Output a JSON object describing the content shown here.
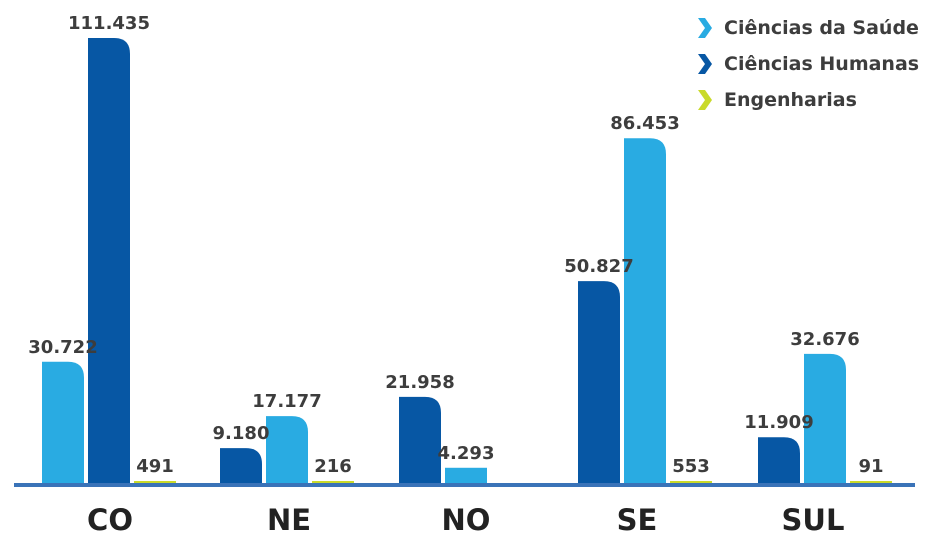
{
  "chart_data": {
    "type": "bar",
    "title": "",
    "xlabel": "",
    "ylabel": "",
    "ylim": [
      0,
      111435
    ],
    "grid": false,
    "legend_position": "top-right",
    "categories": [
      "CO",
      "NE",
      "NO",
      "SE",
      "SUL"
    ],
    "series": [
      {
        "name": "Ciências da Saúde",
        "color": "#29abe2",
        "icon": "chevron-right-icon"
      },
      {
        "name": "Ciências Humanas",
        "color": "#0757a4",
        "icon": "chevron-right-icon"
      },
      {
        "name": "Engenharias",
        "color": "#c9da2a",
        "icon": "chevron-right-icon"
      }
    ],
    "groups": [
      {
        "category": "CO",
        "bars": [
          {
            "series": 0,
            "value": 30722,
            "label": "30.722"
          },
          {
            "series": 1,
            "value": 111435,
            "label": "111.435"
          },
          {
            "series": 2,
            "value": 491,
            "label": "491"
          }
        ]
      },
      {
        "category": "NE",
        "bars": [
          {
            "series": 1,
            "value": 9180,
            "label": "9.180"
          },
          {
            "series": 0,
            "value": 17177,
            "label": "17.177"
          },
          {
            "series": 2,
            "value": 216,
            "label": "216"
          }
        ]
      },
      {
        "category": "NO",
        "bars": [
          {
            "series": 1,
            "value": 21958,
            "label": "21.958"
          },
          {
            "series": 0,
            "value": 4293,
            "label": "4.293"
          }
        ]
      },
      {
        "category": "SE",
        "bars": [
          {
            "series": 1,
            "value": 50827,
            "label": "50.827"
          },
          {
            "series": 0,
            "value": 86453,
            "label": "86.453"
          },
          {
            "series": 2,
            "value": 553,
            "label": "553"
          }
        ]
      },
      {
        "category": "SUL",
        "bars": [
          {
            "series": 1,
            "value": 11909,
            "label": "11.909"
          },
          {
            "series": 0,
            "value": 32676,
            "label": "32.676"
          },
          {
            "series": 2,
            "value": 91,
            "label": "91"
          }
        ]
      }
    ],
    "axis_color": "#3a73b8"
  }
}
